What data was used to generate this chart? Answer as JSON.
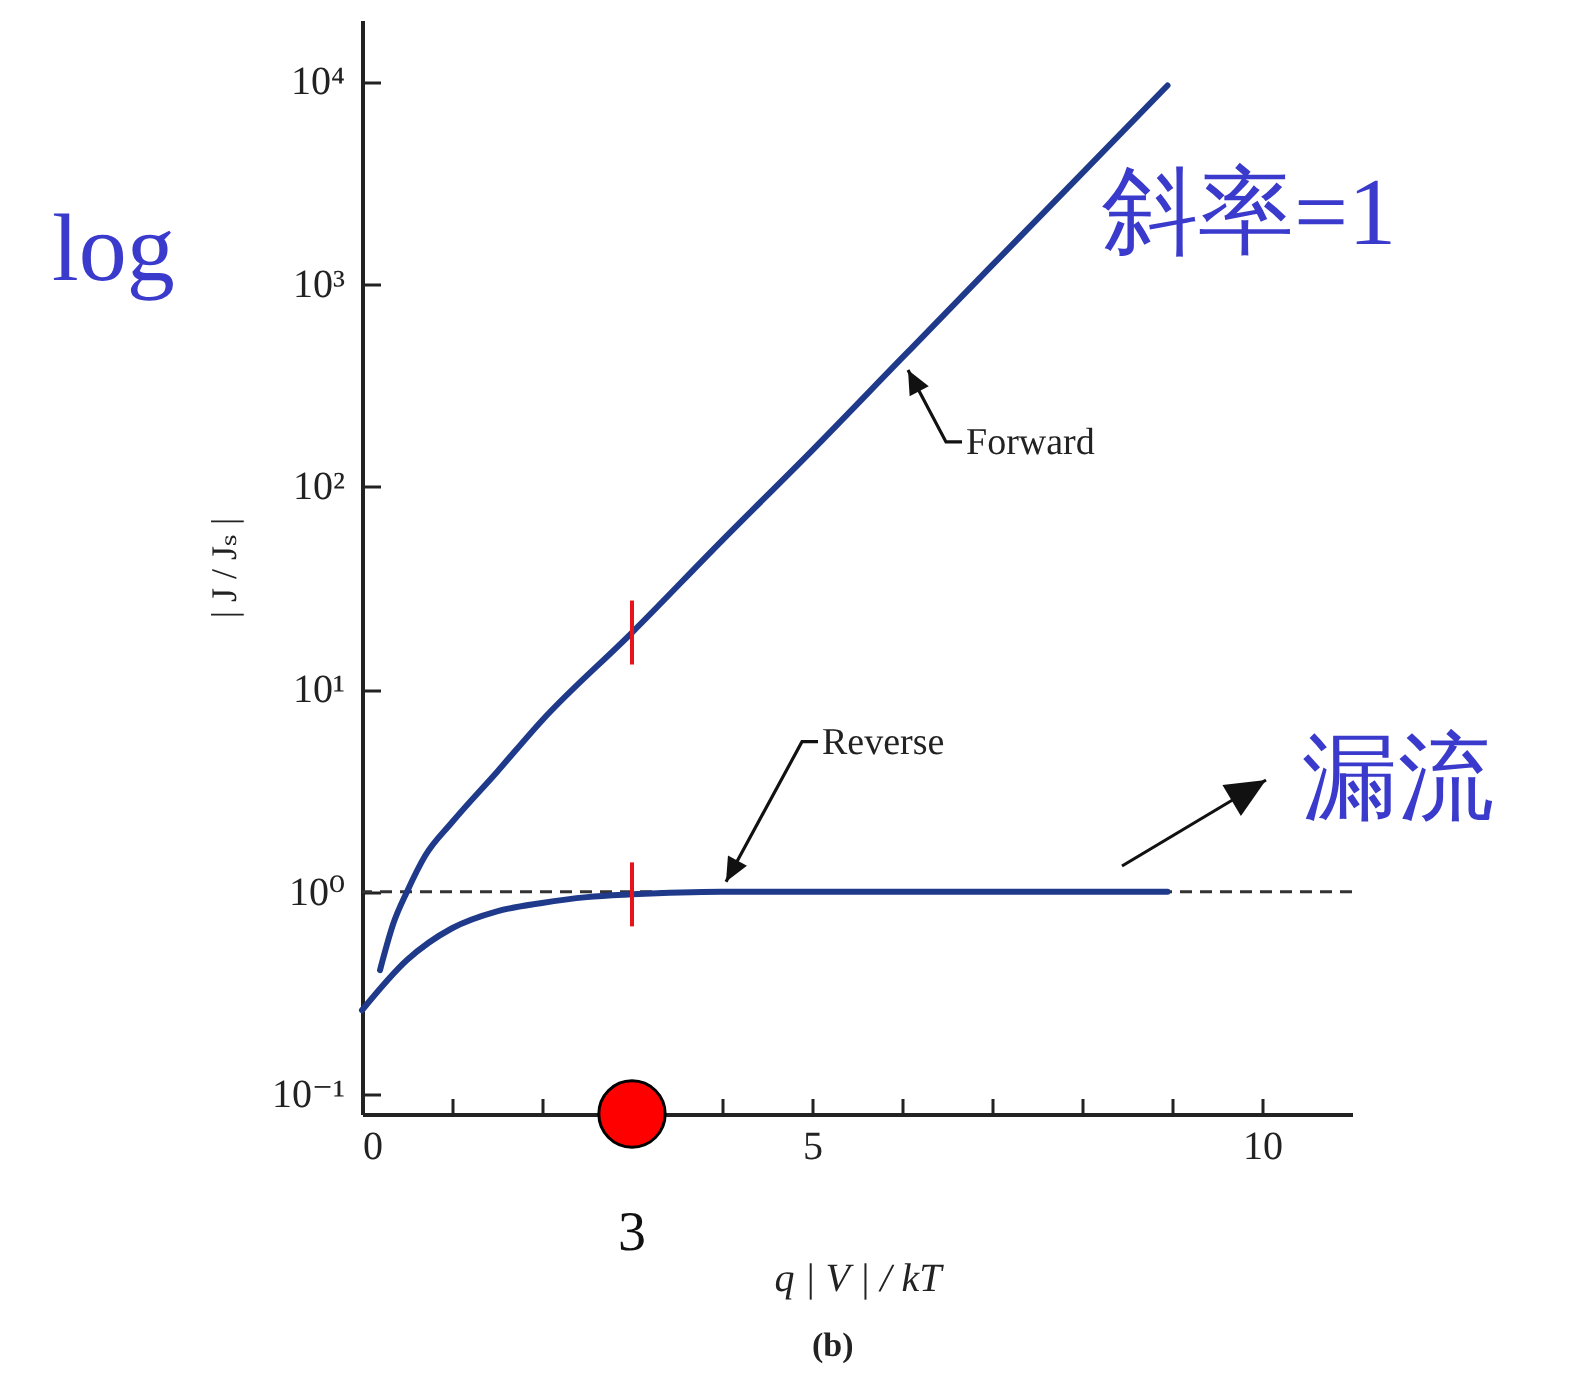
{
  "chart_data": {
    "type": "line",
    "xlabel": "q | V | / kT",
    "ylabel": "| J / Jₛ |",
    "log": "y",
    "xlim": [
      0,
      11
    ],
    "xticks": [
      0,
      {
        "value": 1,
        "label": null
      },
      {
        "value": 2,
        "label": null
      },
      {
        "value": 3,
        "label": null
      },
      {
        "value": 4,
        "label": null
      },
      5,
      {
        "value": 6,
        "label": null
      },
      {
        "value": 7,
        "label": null
      },
      {
        "value": 8,
        "label": null
      },
      {
        "value": 9,
        "label": null
      },
      10
    ],
    "ylim": [
      0.08,
      20000
    ],
    "yticks": [
      {
        "value": 0.1,
        "label": "10⁻¹"
      },
      {
        "value": 1,
        "label": "10⁰"
      },
      {
        "value": 10,
        "label": "10¹"
      },
      {
        "value": 100,
        "label": "10²"
      },
      {
        "value": 1000,
        "label": "10³"
      },
      {
        "value": 10000,
        "label": "10⁴"
      }
    ],
    "grid": false,
    "line_style": "solid",
    "series": [
      {
        "name": "Forward",
        "color": "#1f3a8a",
        "x": [
          0.2,
          0.35,
          0.5,
          0.7,
          1,
          1.5,
          2,
          3,
          4,
          5,
          6,
          7,
          8,
          8.95
        ],
        "values": [
          0.41,
          0.7,
          1,
          1.5,
          2.2,
          3.9,
          7,
          19,
          54,
          150,
          430,
          1230,
          3500,
          9500
        ]
      },
      {
        "name": "Reverse",
        "color": "#1f3a8a",
        "x": [
          0,
          0.5,
          1,
          1.5,
          2,
          2.5,
          3,
          4,
          5,
          6,
          7,
          8,
          8.95
        ],
        "values": [
          0.26,
          0.46,
          0.66,
          0.8,
          0.88,
          0.94,
          0.97,
          1,
          1,
          1,
          1,
          1,
          1
        ]
      },
      {
        "type": "scatter",
        "marker": "circle",
        "color": "#ff0000",
        "x": [
          3
        ],
        "values": [
          0.08
        ]
      }
    ],
    "ref_lines": [
      {
        "axis": "y",
        "value": 1,
        "line_style": "dashed",
        "color": "#333333"
      }
    ],
    "annotations": [
      "3",
      "log",
      "斜率=1",
      "漏流",
      "(b)"
    ]
  }
}
